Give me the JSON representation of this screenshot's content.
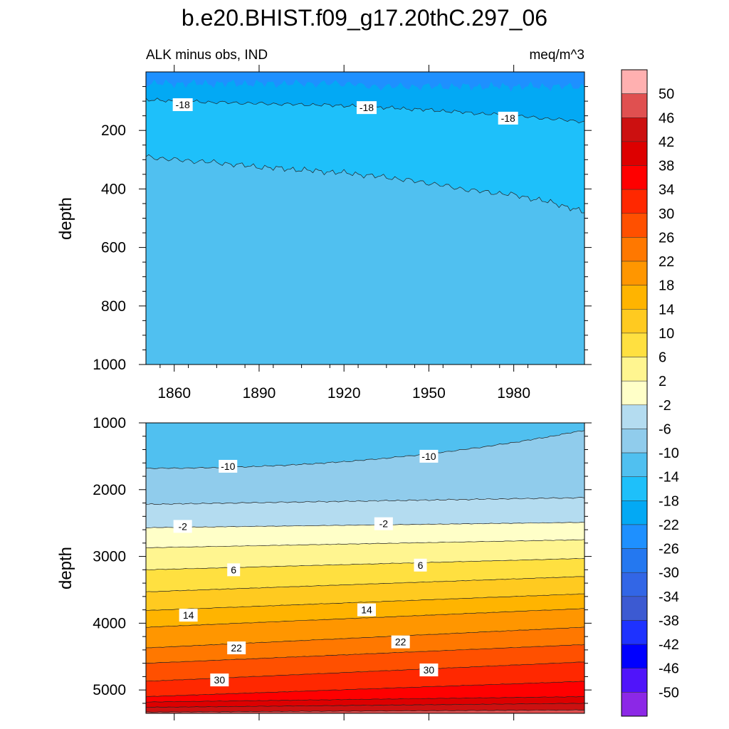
{
  "chart_data": [
    {
      "type": "contour",
      "title": "b.e20.BHIST.f09_g17.20thC.297_06",
      "subtitle_left": "ALK minus obs, IND",
      "subtitle_right": "meq/m^3",
      "xlabel": "",
      "ylabel": "depth",
      "xlim": [
        1850,
        2005
      ],
      "ylim": [
        1000,
        0
      ],
      "x_ticks": [
        1860,
        1890,
        1920,
        1950,
        1980
      ],
      "x_tick_labels": [
        "1860",
        "1890",
        "1920",
        "1950",
        "1980"
      ],
      "y_ticks": [
        200,
        400,
        600,
        800,
        1000
      ],
      "y_tick_labels": [
        "200",
        "400",
        "600",
        "800",
        "1000"
      ],
      "regions": [
        {
          "level_range": [
            -26,
            -22
          ],
          "color": "#1e90ff",
          "top_depth": 0
        },
        {
          "level_range": [
            -22,
            -18
          ],
          "color": "#03a9f4",
          "top_depth": 90
        },
        {
          "level_range": [
            -18,
            -14
          ],
          "color": "#1ec0fa",
          "top_depth": 100
        },
        {
          "level_range": [
            -14,
            -10
          ],
          "color": "#50c0f0",
          "top_depth": 290
        }
      ],
      "contour_-18_depth": {
        "years": [
          1850,
          1860,
          1890,
          1920,
          1950,
          1980,
          2005
        ],
        "values": [
          95,
          100,
          108,
          115,
          130,
          150,
          170
        ]
      },
      "contour_-14_depth": {
        "years": [
          1850,
          1860,
          1875,
          1890,
          1905,
          1920,
          1935,
          1950,
          1965,
          1980,
          1995,
          2005
        ],
        "values": [
          290,
          300,
          310,
          325,
          335,
          345,
          360,
          380,
          405,
          420,
          450,
          480
        ]
      },
      "contour_labels": [
        {
          "text": "-18",
          "x": 1863,
          "y": 112
        },
        {
          "text": "-18",
          "x": 1928,
          "y": 122
        },
        {
          "text": "-18",
          "x": 1978,
          "y": 158
        }
      ]
    },
    {
      "type": "contour",
      "title": "",
      "xlabel": "",
      "ylabel": "depth",
      "xlim": [
        1850,
        2005
      ],
      "ylim": [
        5350,
        1000
      ],
      "x_ticks": [
        1860,
        1890,
        1920,
        1950,
        1980
      ],
      "y_ticks": [
        1000,
        2000,
        3000,
        4000,
        5000
      ],
      "y_tick_labels": [
        "1000",
        "2000",
        "3000",
        "4000",
        "5000"
      ],
      "contour_levels": [
        -10,
        -6,
        -2,
        2,
        6,
        10,
        14,
        18,
        22,
        26,
        30,
        34,
        38,
        42,
        46
      ],
      "contour_depth_at_1850": [
        1680,
        2220,
        2570,
        2870,
        3200,
        3530,
        3810,
        4060,
        4370,
        4600,
        4870,
        5100,
        5180,
        5260,
        5330
      ],
      "contour_depth_at_2005": [
        1110,
        2120,
        2490,
        2750,
        3030,
        3300,
        3560,
        3780,
        4060,
        4320,
        4580,
        4870,
        5100,
        5200,
        5300
      ],
      "contour_labels": [
        {
          "text": "-10",
          "x": 1879,
          "y": 1650
        },
        {
          "text": "-10",
          "x": 1950,
          "y": 1500
        },
        {
          "text": "-2",
          "x": 1863,
          "y": 2550
        },
        {
          "text": "-2",
          "x": 1934,
          "y": 2510
        },
        {
          "text": "6",
          "x": 1881,
          "y": 3200
        },
        {
          "text": "6",
          "x": 1947,
          "y": 3130
        },
        {
          "text": "14",
          "x": 1865,
          "y": 3880
        },
        {
          "text": "14",
          "x": 1928,
          "y": 3800
        },
        {
          "text": "22",
          "x": 1882,
          "y": 4370
        },
        {
          "text": "22",
          "x": 1940,
          "y": 4280
        },
        {
          "text": "30",
          "x": 1876,
          "y": 4850
        },
        {
          "text": "30",
          "x": 1950,
          "y": 4700
        }
      ]
    }
  ],
  "colorbar": {
    "labels": [
      "50",
      "46",
      "42",
      "38",
      "34",
      "30",
      "26",
      "22",
      "18",
      "14",
      "10",
      "6",
      "2",
      "-2",
      "-6",
      "-10",
      "-14",
      "-18",
      "-22",
      "-26",
      "-30",
      "-34",
      "-38",
      "-42",
      "-46",
      "-50"
    ],
    "colors": [
      "#ffb0b0",
      "#e05050",
      "#cc1010",
      "#dd0000",
      "#ff0000",
      "#ff2800",
      "#ff5000",
      "#ff7800",
      "#ff9600",
      "#ffb400",
      "#ffca20",
      "#ffe040",
      "#fff590",
      "#ffffc8",
      "#b4dcf0",
      "#90ccec",
      "#50c0f0",
      "#1ec0fa",
      "#03a9f4",
      "#1e90ff",
      "#2478f0",
      "#3266e6",
      "#3c5ad2",
      "#1e32ff",
      "#0000ff",
      "#5014fa",
      "#8c28e6"
    ]
  },
  "colors": {
    "bottom_fills": [
      "#50c0f0",
      "#90ccec",
      "#b4dcf0",
      "#ffffc8",
      "#fff590",
      "#ffe040",
      "#ffca20",
      "#ffb400",
      "#ff9600",
      "#ff7800",
      "#ff5000",
      "#ff2800",
      "#ff0000",
      "#dd0000",
      "#cc1010",
      "#e05050"
    ]
  }
}
